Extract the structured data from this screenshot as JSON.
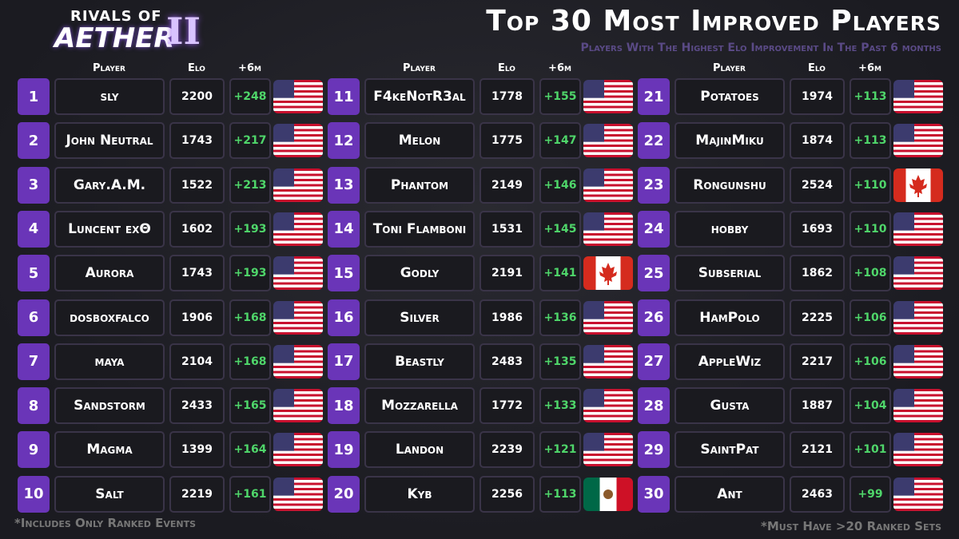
{
  "header": {
    "logo": {
      "top": "RIVALS OF",
      "bottom": "AETHER",
      "numeral": "II"
    },
    "title": "Top 30 Most Improved Players",
    "subtitle": "Players With The Highest Elo Improvement In The Past 6 months"
  },
  "table": {
    "headers": [
      "Player",
      "Elo",
      "+6m"
    ],
    "rows": [
      [
        1,
        "sly",
        2200,
        "+248"
      ],
      [
        2,
        "John Neutral",
        1743,
        "+217"
      ],
      [
        3,
        "Gary.A.M.",
        1522,
        "+213"
      ],
      [
        4,
        "Luncent εχΘ",
        1602,
        "+193"
      ],
      [
        5,
        "Aurora",
        1743,
        "+193"
      ],
      [
        6,
        "dosboxfalco",
        1906,
        "+168"
      ],
      [
        7,
        "maya",
        2104,
        "+168"
      ],
      [
        8,
        "Sandstorm",
        2433,
        "+165"
      ],
      [
        9,
        "Magma",
        1399,
        "+164"
      ],
      [
        10,
        "Salt",
        2219,
        "+161"
      ],
      [
        11,
        "F4keNotR3al",
        1778,
        "+155"
      ],
      [
        12,
        "Melon",
        1775,
        "+147"
      ],
      [
        13,
        "Phantom",
        2149,
        "+146"
      ],
      [
        14,
        "Toni Flamboni",
        1531,
        "+145"
      ],
      [
        15,
        "Godly",
        2191,
        "+141"
      ],
      [
        16,
        "Silver",
        1986,
        "+136"
      ],
      [
        17,
        "Beastly",
        2483,
        "+135"
      ],
      [
        18,
        "Mozzarella",
        1772,
        "+133"
      ],
      [
        19,
        "Landon",
        2239,
        "+121"
      ],
      [
        20,
        "Kyb",
        2256,
        "+113"
      ],
      [
        21,
        "Potatoes",
        1974,
        "+113"
      ],
      [
        22,
        "MajinMiku",
        1874,
        "+113"
      ],
      [
        23,
        "Rongunshu",
        2524,
        "+110"
      ],
      [
        24,
        "hobby",
        1693,
        "+110"
      ],
      [
        25,
        "Subserial",
        1862,
        "+108"
      ],
      [
        26,
        "HamPolo",
        2225,
        "+106"
      ],
      [
        27,
        "AppleWiz",
        2217,
        "+106"
      ],
      [
        28,
        "Gusta",
        1887,
        "+104"
      ],
      [
        29,
        "SaintPat",
        2121,
        "+101"
      ],
      [
        30,
        "Ant",
        2463,
        "+99"
      ]
    ]
  },
  "footer": {
    "left": "*Includes Only Ranked Events",
    "right": "*Must Have >20 Ranked Sets"
  }
}
